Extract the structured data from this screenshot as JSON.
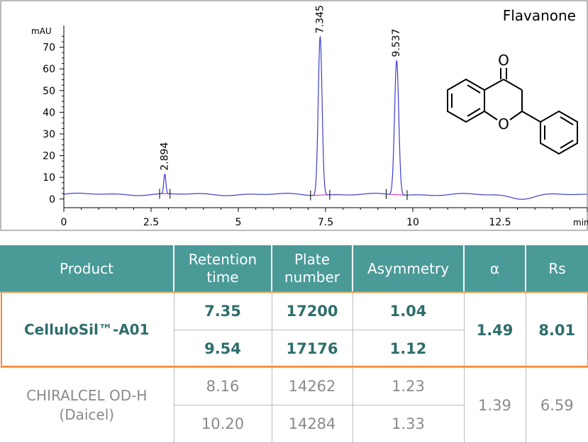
{
  "chart_data": {
    "type": "line",
    "title": "Flavanone",
    "ylabel": "mAU",
    "xlabel": "min",
    "xlim": [
      0,
      15
    ],
    "ylim": [
      -4,
      80
    ],
    "x_ticks": [
      0,
      2.5,
      5,
      7.5,
      10,
      12.5
    ],
    "y_ticks": [
      0,
      10,
      20,
      30,
      40,
      50,
      60,
      70
    ],
    "series": [
      {
        "color": "#3c3ccf",
        "baseline": 2.2,
        "peaks": [
          {
            "rt": 2.894,
            "height": 9,
            "width": 0.03
          },
          {
            "rt": 7.345,
            "height": 73,
            "width": 0.055
          },
          {
            "rt": 9.537,
            "height": 62,
            "width": 0.06
          }
        ]
      }
    ],
    "peak_labels": [
      "2.894",
      "7.345",
      "9.537"
    ],
    "integration_color": "#e040c0"
  },
  "table": {
    "headers": [
      "Product",
      "Retention time",
      "Plate number",
      "Asymmetry",
      "α",
      "Rs"
    ],
    "rows": [
      {
        "product": "CelluloSil™-A01",
        "highlight": true,
        "peaks": [
          {
            "retention": "7.35",
            "plates": "17200",
            "asymmetry": "1.04"
          },
          {
            "retention": "9.54",
            "plates": "17176",
            "asymmetry": "1.12"
          }
        ],
        "alpha": "1.49",
        "rs": "8.01"
      },
      {
        "product": "CHIRALCEL OD-H (Daicel)",
        "highlight": false,
        "peaks": [
          {
            "retention": "8.16",
            "plates": "14262",
            "asymmetry": "1.23"
          },
          {
            "retention": "10.20",
            "plates": "14284",
            "asymmetry": "1.33"
          }
        ],
        "alpha": "1.39",
        "rs": "6.59"
      }
    ]
  }
}
